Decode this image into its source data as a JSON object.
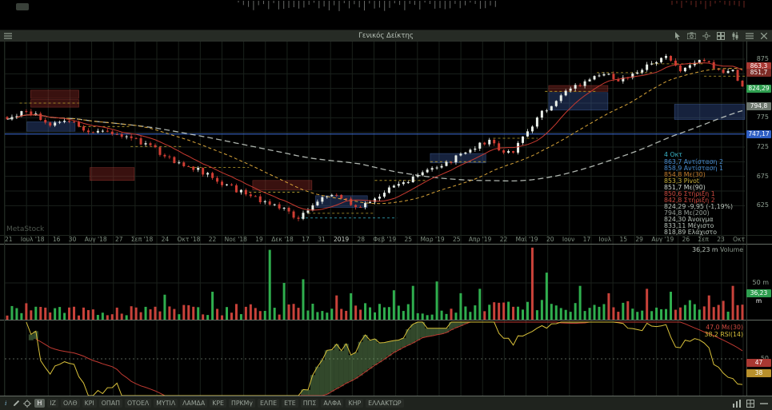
{
  "titlebar": {
    "title": "Γενικός Δείκτης"
  },
  "watermark": "MetaStock",
  "legend": {
    "date": "4 Οκτ",
    "lines": [
      {
        "text": "863,7  Αντίσταση 2",
        "color": "#4a8fd4"
      },
      {
        "text": "858,9  Αντίσταση 1",
        "color": "#4a8fd4"
      },
      {
        "text": "854,8  Με(30)",
        "color": "#c87f2e"
      },
      {
        "text": "853,3  Pivot",
        "color": "#c9b13a"
      },
      {
        "text": "851,7  Με(90)",
        "color": "#cfd8d0"
      },
      {
        "text": "850,6  Στήριξη 1",
        "color": "#cf4a40"
      },
      {
        "text": "842,8  Στήριξη 2",
        "color": "#cf4a40"
      },
      {
        "text": "824,29  -9,95  (-1,19%)",
        "color": "#b9c4bb"
      },
      {
        "text": "794,8  Με(200)",
        "color": "#98a09a"
      },
      {
        "text": "824,30  Άνοιγμα",
        "color": "#b9c4bb"
      },
      {
        "text": "833,11  Μέγιστο",
        "color": "#b9c4bb"
      },
      {
        "text": "818,89  Ελάχιστο",
        "color": "#b9c4bb"
      }
    ]
  },
  "price_axis": {
    "ticks": [
      "875",
      "825",
      "775",
      "725",
      "675",
      "625"
    ],
    "tick_values": [
      875,
      825,
      775,
      725,
      675,
      625
    ],
    "badges": [
      {
        "text": "863,3",
        "price": 863.3,
        "bg": "#a83832"
      },
      {
        "text": "851,7",
        "price": 851.7,
        "bg": "#7d2b26"
      },
      {
        "text": "824,29",
        "price": 824.29,
        "bg": "#2e9e4f"
      },
      {
        "text": "794,8",
        "price": 794.8,
        "bg": "#6e786f"
      },
      {
        "text": "747,17",
        "price": 747.17,
        "bg": "#2f5fc4"
      }
    ]
  },
  "x_axis_labels": [
    "21",
    "Ιουλ '18",
    "16",
    "30",
    "Αυγ '18",
    "27",
    "Σεπ '18",
    "24",
    "Οκτ '18",
    "22",
    "Νοε '18",
    "19",
    "Δεκ '18",
    "17",
    "31",
    "2019",
    "28",
    "Φεβ '19",
    "25",
    "Μαρ '19",
    "25",
    "Απρ '19",
    "22",
    "Μαϊ '19",
    "20",
    "Ιουν",
    "17",
    "Ιουλ",
    "15",
    "29",
    "Αυγ '19",
    "26",
    "Σεπ",
    "23",
    "Οκτ"
  ],
  "volume": {
    "legend_value": "36,23 m",
    "legend_label": "Volume",
    "tick_label": "50 m",
    "tick_value": 50,
    "badge_text": "36,23 m",
    "badge_value": 36.23,
    "max_m": 100
  },
  "rsi_panel": {
    "lines": [
      {
        "text": "47,0 Με(30)",
        "color": "#cf4a40"
      },
      {
        "text": "38,2 RSI(14)",
        "color": "#d9c13a"
      }
    ],
    "level_label": "50",
    "level_value": 50,
    "badges": [
      {
        "text": "47",
        "value": 47,
        "bg": "#a83832"
      },
      {
        "text": "38",
        "value": 38,
        "bg": "#b8902c"
      }
    ]
  },
  "toolbar": {
    "info_label": "i",
    "buttons": [
      {
        "label": "H",
        "active": true
      }
    ],
    "tickers": [
      "ΙΖ",
      "ΟΛΘ",
      "ΚΡΙ",
      "ΟΠΑΠ",
      "ΟΤΟΕΛ",
      "ΜΥΤΙΛ",
      "ΛΑΜΔΑ",
      "ΚΡΕ",
      "ΠΡΚΜγ",
      "ΕΛΠΕ",
      "ΕΤΕ",
      "ΠΠΣ",
      "ΑΛΦΑ",
      "ΚΗΡ",
      "ΕΛΛΑΚΤΩΡ"
    ]
  },
  "colors": {
    "up_candle": "#e9efe9",
    "down_candle": "#cf3d33",
    "ma30": "#c83a30",
    "ma90": "#d9a53a",
    "ma200": "#cdd4cd",
    "alert_line": "#3f6fd8",
    "vol_up": "#2fae4e",
    "vol_down": "#c9423a",
    "rsi": "#d9c13a",
    "rsi_ma": "#c03a32",
    "zone_blue": "rgba(58,90,160,0.38)",
    "zone_red": "rgba(150,45,40,0.38)"
  },
  "chart_data": {
    "type": "candlestick",
    "instrument": "Γενικός Δείκτης",
    "x_range": "Ιουν 2018 - Οκτ 2019",
    "y_axis_ticks": [
      875,
      850,
      825,
      800,
      775,
      750,
      725,
      700,
      675,
      650,
      625
    ],
    "key_levels": {
      "alert_line": 747.17,
      "last_price": 824.29,
      "change": -9.95,
      "change_pct": -1.19,
      "open": 824.3,
      "high": 833.11,
      "low": 818.89,
      "me30": 854.8,
      "me90": 851.7,
      "me200": 794.8,
      "pivot": 853.3,
      "resistance1": 858.9,
      "resistance2": 863.7,
      "support1": 850.6,
      "support2": 842.8
    },
    "price_anchors": [
      [
        0,
        772
      ],
      [
        0.02,
        786
      ],
      [
        0.04,
        779
      ],
      [
        0.06,
        764
      ],
      [
        0.08,
        770
      ],
      [
        0.1,
        758
      ],
      [
        0.12,
        752
      ],
      [
        0.14,
        748
      ],
      [
        0.16,
        742
      ],
      [
        0.18,
        735
      ],
      [
        0.2,
        722
      ],
      [
        0.22,
        705
      ],
      [
        0.24,
        695
      ],
      [
        0.26,
        686
      ],
      [
        0.28,
        672
      ],
      [
        0.3,
        658
      ],
      [
        0.32,
        648
      ],
      [
        0.34,
        636
      ],
      [
        0.36,
        628
      ],
      [
        0.38,
        615
      ],
      [
        0.395,
        604
      ],
      [
        0.41,
        622
      ],
      [
        0.43,
        638
      ],
      [
        0.45,
        645
      ],
      [
        0.465,
        628
      ],
      [
        0.48,
        618
      ],
      [
        0.5,
        638
      ],
      [
        0.52,
        652
      ],
      [
        0.54,
        664
      ],
      [
        0.56,
        680
      ],
      [
        0.58,
        692
      ],
      [
        0.6,
        700
      ],
      [
        0.62,
        712
      ],
      [
        0.64,
        726
      ],
      [
        0.655,
        738
      ],
      [
        0.67,
        722
      ],
      [
        0.685,
        712
      ],
      [
        0.7,
        745
      ],
      [
        0.715,
        762
      ],
      [
        0.73,
        788
      ],
      [
        0.75,
        808
      ],
      [
        0.77,
        828
      ],
      [
        0.79,
        840
      ],
      [
        0.81,
        852
      ],
      [
        0.83,
        838
      ],
      [
        0.85,
        850
      ],
      [
        0.87,
        862
      ],
      [
        0.885,
        872
      ],
      [
        0.9,
        880
      ],
      [
        0.915,
        856
      ],
      [
        0.93,
        866
      ],
      [
        0.945,
        874
      ],
      [
        0.96,
        862
      ],
      [
        0.975,
        852
      ],
      [
        0.985,
        860
      ],
      [
        1,
        824
      ]
    ],
    "volume_max_m": 100,
    "volume_current_m": 36.23,
    "volume_spikes": [
      [
        0.215,
        0.34,
        "g"
      ],
      [
        0.28,
        0.38,
        "g"
      ],
      [
        0.355,
        0.95,
        "g"
      ],
      [
        0.375,
        0.5,
        "g"
      ],
      [
        0.4,
        0.55,
        "g"
      ],
      [
        0.445,
        0.33,
        "r"
      ],
      [
        0.47,
        0.36,
        "g"
      ],
      [
        0.525,
        0.4,
        "g"
      ],
      [
        0.555,
        0.46,
        "g"
      ],
      [
        0.585,
        0.52,
        "g"
      ],
      [
        0.615,
        0.36,
        "g"
      ],
      [
        0.64,
        0.42,
        "g"
      ],
      [
        0.715,
        0.98,
        "r"
      ],
      [
        0.735,
        0.64,
        "g"
      ],
      [
        0.78,
        0.46,
        "g"
      ],
      [
        0.815,
        0.36,
        "r"
      ],
      [
        0.87,
        0.42,
        "r"
      ],
      [
        0.9,
        0.38,
        "g"
      ],
      [
        0.955,
        0.33,
        "r"
      ],
      [
        0.985,
        0.46,
        "r"
      ]
    ],
    "zones": [
      {
        "t0": 0.035,
        "t1": 0.1,
        "p0": 808,
        "p1": 822,
        "c": "red"
      },
      {
        "t0": 0.035,
        "t1": 0.1,
        "p0": 793,
        "p1": 806,
        "c": "red"
      },
      {
        "t0": 0.03,
        "t1": 0.095,
        "p0": 752,
        "p1": 768,
        "c": "blue"
      },
      {
        "t0": 0.115,
        "t1": 0.175,
        "p0": 668,
        "p1": 690,
        "c": "red"
      },
      {
        "t0": 0.335,
        "t1": 0.415,
        "p0": 652,
        "p1": 668,
        "c": "red"
      },
      {
        "t0": 0.42,
        "t1": 0.49,
        "p0": 622,
        "p1": 642,
        "c": "blue"
      },
      {
        "t0": 0.575,
        "t1": 0.65,
        "p0": 698,
        "p1": 714,
        "c": "blue"
      },
      {
        "t0": 0.735,
        "t1": 0.815,
        "p0": 788,
        "p1": 818,
        "c": "blue"
      },
      {
        "t0": 0.735,
        "t1": 0.815,
        "p0": 820,
        "p1": 830,
        "c": "red"
      },
      {
        "t0": 0.905,
        "t1": 1,
        "p0": 772,
        "p1": 798,
        "c": "blue"
      }
    ],
    "pivot_segments": [
      [
        0.02,
        0.1,
        800
      ],
      [
        0.1,
        0.17,
        760
      ],
      [
        0.17,
        0.24,
        726
      ],
      [
        0.25,
        0.33,
        690
      ],
      [
        0.33,
        0.4,
        648
      ],
      [
        0.41,
        0.5,
        612
      ],
      [
        0.5,
        0.57,
        668
      ],
      [
        0.575,
        0.65,
        700
      ],
      [
        0.66,
        0.72,
        740
      ],
      [
        0.73,
        0.8,
        820
      ],
      [
        0.8,
        0.875,
        852
      ],
      [
        0.875,
        0.945,
        867
      ],
      [
        0.945,
        1,
        846
      ]
    ],
    "cyan_segment": [
      0.4,
      0.53,
      604
    ],
    "moving_averages": [
      {
        "label": "Με(30)",
        "color": "#c83a30",
        "style": "solid"
      },
      {
        "label": "Με(90)",
        "color": "#d9a53a",
        "style": "dashed"
      },
      {
        "label": "Με(200)",
        "color": "#cdd4cd",
        "style": "dashed"
      }
    ],
    "rsi": {
      "period": 14,
      "ma_window": 30,
      "last": 38.2,
      "ma_last": 47.0,
      "level": 50,
      "scale": [
        20,
        80
      ]
    }
  }
}
